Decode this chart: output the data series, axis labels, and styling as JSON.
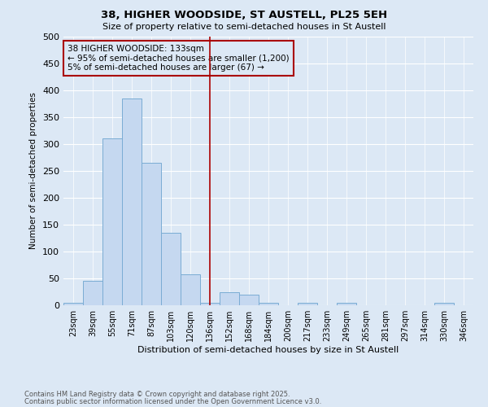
{
  "title": "38, HIGHER WOODSIDE, ST AUSTELL, PL25 5EH",
  "subtitle": "Size of property relative to semi-detached houses in St Austell",
  "xlabel": "Distribution of semi-detached houses by size in St Austell",
  "ylabel": "Number of semi-detached properties",
  "categories": [
    "23sqm",
    "39sqm",
    "55sqm",
    "71sqm",
    "87sqm",
    "103sqm",
    "120sqm",
    "136sqm",
    "152sqm",
    "168sqm",
    "184sqm",
    "200sqm",
    "217sqm",
    "233sqm",
    "249sqm",
    "265sqm",
    "281sqm",
    "297sqm",
    "314sqm",
    "330sqm",
    "346sqm"
  ],
  "values": [
    5,
    46,
    310,
    385,
    265,
    135,
    57,
    5,
    25,
    20,
    5,
    0,
    5,
    0,
    5,
    0,
    0,
    0,
    0,
    5,
    0
  ],
  "bar_color": "#c5d8f0",
  "bar_edgecolor": "#7aacd4",
  "vline_x_index": 7,
  "vline_color": "#aa0000",
  "annotation_title": "38 HIGHER WOODSIDE: 133sqm",
  "annotation_line1": "← 95% of semi-detached houses are smaller (1,200)",
  "annotation_line2": "5% of semi-detached houses are larger (67) →",
  "ylim": [
    0,
    500
  ],
  "yticks": [
    0,
    50,
    100,
    150,
    200,
    250,
    300,
    350,
    400,
    450,
    500
  ],
  "footnote1": "Contains HM Land Registry data © Crown copyright and database right 2025.",
  "footnote2": "Contains public sector information licensed under the Open Government Licence v3.0.",
  "background_color": "#dce8f5",
  "grid_color": "#ffffff"
}
